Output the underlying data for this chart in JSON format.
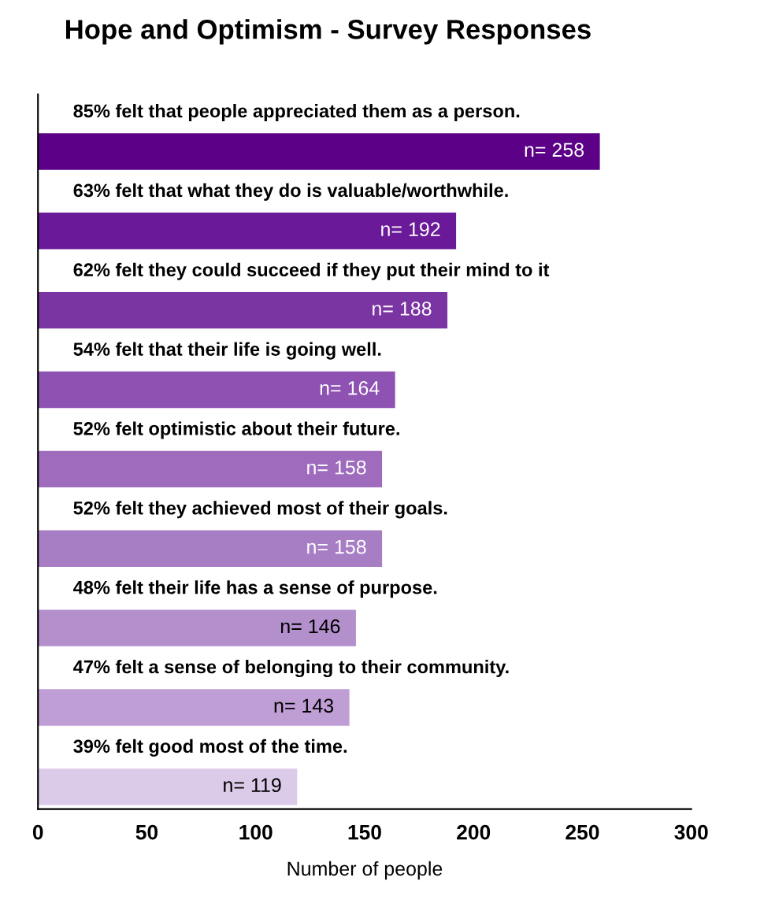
{
  "chart_data": {
    "type": "bar",
    "orientation": "horizontal",
    "title": "Hope and Optimism - Survey Responses",
    "xlabel": "Number of people",
    "categories": [
      "85% felt that people appreciated them as a person.",
      "63% felt that what they do is valuable/worthwhile.",
      "62% felt they could succeed if they put their mind to it",
      "54% felt that their life is going well.",
      "52% felt optimistic about their future.",
      "52% felt they achieved most of their goals.",
      "48% felt their life has a sense of purpose.",
      "47% felt a sense of belonging to their community.",
      "39% felt good most of the time."
    ],
    "values": [
      258,
      192,
      188,
      164,
      158,
      158,
      146,
      143,
      119
    ],
    "value_labels": [
      "n= 258",
      "n= 192",
      "n= 188",
      "n= 164",
      "n= 158",
      "n= 158",
      "n= 146",
      "n= 143",
      "n= 119"
    ],
    "colors": [
      "#5c0087",
      "#6a1a98",
      "#7a35a3",
      "#8e52b3",
      "#9e6bbd",
      "#a77dc4",
      "#b38fcc",
      "#bf9dd5",
      "#dccbe8"
    ],
    "xlim": [
      0,
      300
    ],
    "xticks": [
      0,
      50,
      100,
      150,
      200,
      250,
      300
    ],
    "grid": false,
    "legend": false
  }
}
